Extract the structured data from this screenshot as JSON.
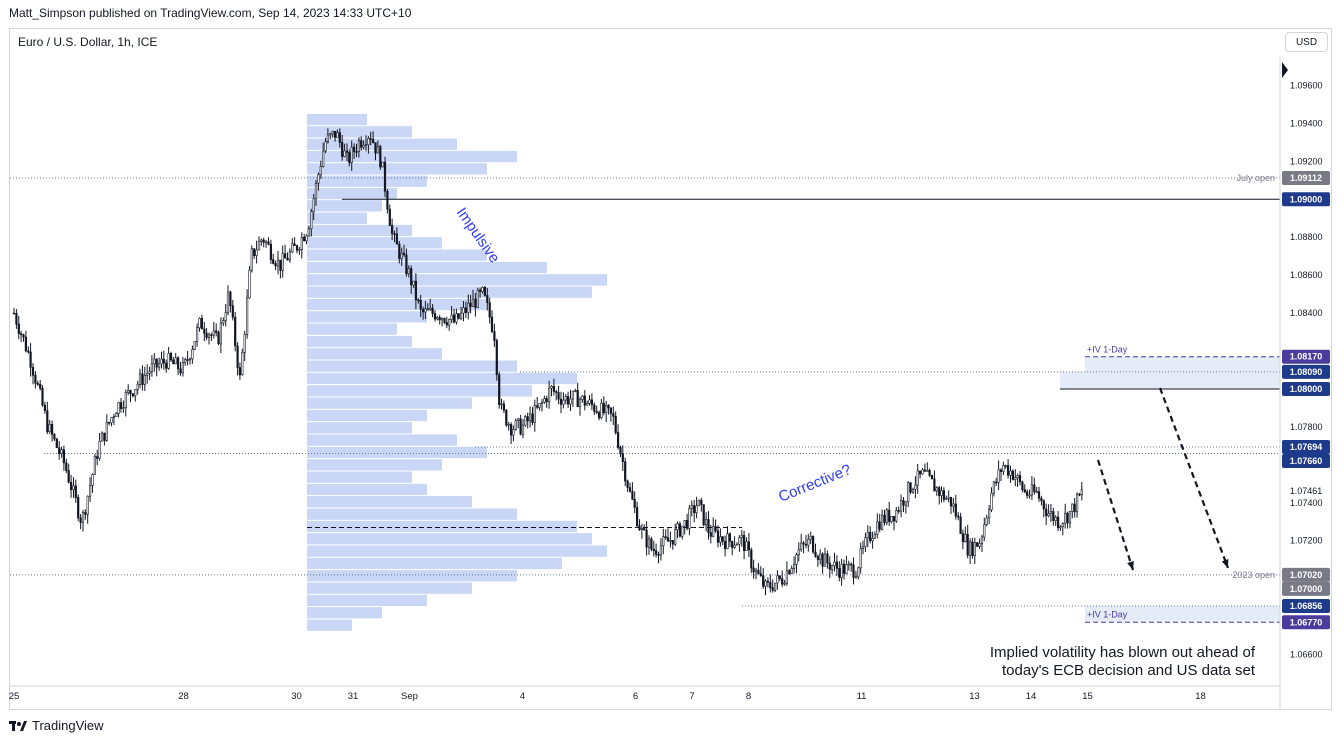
{
  "header": {
    "published": "Matt_Simpson published on TradingView.com, Sep 14, 2023 14:33 UTC+10",
    "symbol": "Euro / U.S. Dollar, 1h, ICE",
    "currency_button": "USD"
  },
  "footer": {
    "brand": "TradingView"
  },
  "colors": {
    "candle": "#131722",
    "volume_profile": "#c9d6f5",
    "price_tag_dark": "#787b86",
    "price_tag_blue": "#1e3a8a",
    "price_tag_purple": "#4a3c9c",
    "annotation_blue": "#2f3cf0",
    "zone_fill": "#e6ebf8"
  },
  "chart_data": {
    "type": "candlestick",
    "title": "Euro / U.S. Dollar, 1h, ICE",
    "ylim": [
      1.0645,
      1.0975
    ],
    "y_ticks": [
      "1.09600",
      "1.09400",
      "1.09200",
      "1.08800",
      "1.08600",
      "1.08400",
      "1.07800",
      "1.07600",
      "1.07400",
      "1.07200",
      "1.06600"
    ],
    "x_ticks": [
      "25",
      "28",
      "30",
      "31",
      "Sep",
      "4",
      "6",
      "7",
      "8",
      "11",
      "13",
      "14",
      "15",
      "18"
    ],
    "x_tick_index": [
      0,
      3,
      5,
      6,
      7,
      9,
      11,
      12,
      13,
      15,
      17,
      18,
      19,
      21
    ],
    "path_points": [
      [
        0,
        1.084
      ],
      [
        0.3,
        1.0815
      ],
      [
        0.6,
        1.078
      ],
      [
        0.9,
        1.076
      ],
      [
        1.2,
        1.073
      ],
      [
        1.5,
        1.077
      ],
      [
        1.8,
        1.079
      ],
      [
        2.1,
        1.08
      ],
      [
        2.4,
        1.081
      ],
      [
        2.7,
        1.0815
      ],
      [
        3.0,
        1.081
      ],
      [
        3.3,
        1.0835
      ],
      [
        3.6,
        1.0825
      ],
      [
        3.8,
        1.085
      ],
      [
        4.0,
        1.0805
      ],
      [
        4.2,
        1.087
      ],
      [
        4.4,
        1.088
      ],
      [
        4.7,
        1.0865
      ],
      [
        5.0,
        1.0875
      ],
      [
        5.2,
        1.0885
      ],
      [
        5.5,
        1.093
      ],
      [
        5.7,
        1.0935
      ],
      [
        5.9,
        1.092
      ],
      [
        6.1,
        1.093
      ],
      [
        6.3,
        1.0935
      ],
      [
        6.5,
        1.092
      ],
      [
        6.7,
        1.088
      ],
      [
        7.0,
        1.086
      ],
      [
        7.2,
        1.084
      ],
      [
        7.5,
        1.084
      ],
      [
        7.8,
        1.0835
      ],
      [
        8.1,
        1.0845
      ],
      [
        8.3,
        1.085
      ],
      [
        8.5,
        1.083
      ],
      [
        8.6,
        1.079
      ],
      [
        8.8,
        1.078
      ],
      [
        9.0,
        1.078
      ],
      [
        9.3,
        1.079
      ],
      [
        9.5,
        1.08
      ],
      [
        9.7,
        1.0795
      ],
      [
        10.0,
        1.0795
      ],
      [
        10.3,
        1.079
      ],
      [
        10.6,
        1.0785
      ],
      [
        10.9,
        1.0745
      ],
      [
        11.1,
        1.0725
      ],
      [
        11.3,
        1.0715
      ],
      [
        11.6,
        1.072
      ],
      [
        11.9,
        1.073
      ],
      [
        12.1,
        1.074
      ],
      [
        12.3,
        1.0725
      ],
      [
        12.6,
        1.072
      ],
      [
        12.9,
        1.072
      ],
      [
        13.1,
        1.0705
      ],
      [
        13.3,
        1.0695
      ],
      [
        13.6,
        1.07
      ],
      [
        13.9,
        1.0715
      ],
      [
        14.1,
        1.072
      ],
      [
        14.3,
        1.071
      ],
      [
        14.6,
        1.0705
      ],
      [
        14.9,
        1.0705
      ],
      [
        15.1,
        1.072
      ],
      [
        15.3,
        1.073
      ],
      [
        15.6,
        1.0735
      ],
      [
        15.9,
        1.075
      ],
      [
        16.1,
        1.0755
      ],
      [
        16.4,
        1.0745
      ],
      [
        16.6,
        1.074
      ],
      [
        16.9,
        1.0715
      ],
      [
        17.1,
        1.072
      ],
      [
        17.3,
        1.0745
      ],
      [
        17.5,
        1.076
      ],
      [
        17.7,
        1.0755
      ],
      [
        17.9,
        1.0745
      ],
      [
        18.1,
        1.0745
      ],
      [
        18.3,
        1.0735
      ],
      [
        18.5,
        1.073
      ],
      [
        18.7,
        1.0735
      ],
      [
        18.9,
        1.0745
      ]
    ],
    "levels": [
      {
        "label": "July open",
        "value": 1.09112,
        "tag": "1.09112",
        "style": "dotted"
      },
      {
        "label": "",
        "value": 1.09,
        "tag": "1.09000",
        "style": "solid"
      },
      {
        "label": "+IV 1-Day",
        "value": 1.0817,
        "tag": "1.08170",
        "style": "dashed"
      },
      {
        "label": "",
        "value": 1.0809,
        "tag": "1.08090",
        "style": "dotted"
      },
      {
        "label": "",
        "value": 1.08,
        "tag": "1.08000",
        "style": "solid"
      },
      {
        "label": "",
        "value": 1.07694,
        "tag": "1.07694",
        "style": "dotted"
      },
      {
        "label": "",
        "value": 1.0766,
        "tag": "1.07660",
        "style": "dotted"
      },
      {
        "label": "",
        "value": 1.07461,
        "tag": "1.07461",
        "style": "price"
      },
      {
        "label": "2023 open",
        "value": 1.0702,
        "tag": "1.07020",
        "style": "dotted"
      },
      {
        "label": "",
        "value": 1.07,
        "tag": "1.07000",
        "style": "none"
      },
      {
        "label": "",
        "value": 1.06856,
        "tag": "1.06856",
        "style": "dotted"
      },
      {
        "label": "+IV 1-Day",
        "value": 1.0677,
        "tag": "1.06770",
        "style": "dashed"
      }
    ],
    "annotations": {
      "impulsive": "Impulsive",
      "corrective": "Corrective?",
      "note_line1": "Implied volatility has blown out ahead of",
      "note_line2": "today's ECB decision and US data set"
    }
  }
}
